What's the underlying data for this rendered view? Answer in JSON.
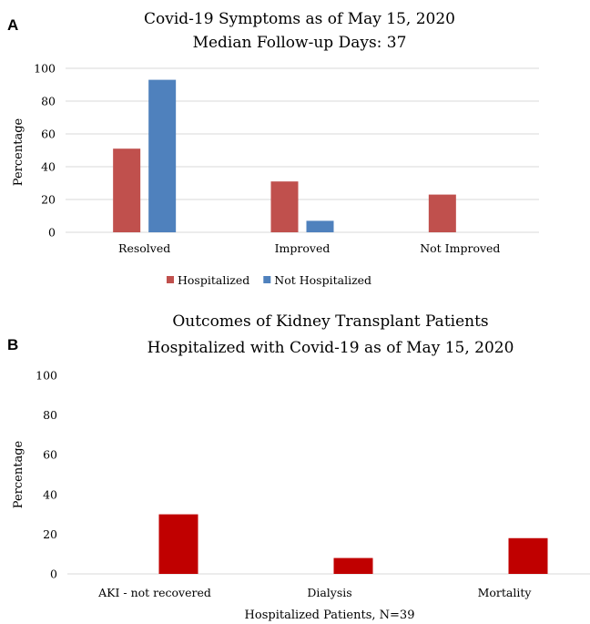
{
  "chart_data": [
    {
      "type": "bar",
      "panel": "A",
      "title": [
        "Covid-19 Symptoms as of May 15, 2020",
        "Median Follow-up Days: 37"
      ],
      "xlabel": "",
      "ylabel": "Percentage",
      "ylim": [
        0,
        100
      ],
      "yticks": [
        0,
        20,
        40,
        60,
        80,
        100
      ],
      "grid": true,
      "legend_placement": "bottom",
      "categories": [
        "Resolved",
        "Improved",
        "Not Improved"
      ],
      "series": [
        {
          "name": "Hospitalized",
          "color": "#c0504d",
          "values": [
            51,
            31,
            23
          ]
        },
        {
          "name": "Not Hospitalized",
          "color": "#4f81bd",
          "values": [
            93,
            7,
            0
          ]
        }
      ]
    },
    {
      "type": "bar",
      "panel": "B",
      "title": [
        "Outcomes of Kidney Transplant Patients",
        "Hospitalized with Covid-19 as of May 15, 2020"
      ],
      "xlabel": "Hospitalized Patients, N=39",
      "ylabel": "Percentage",
      "ylim": [
        0,
        100
      ],
      "yticks": [
        0,
        20,
        40,
        60,
        80,
        100
      ],
      "grid": false,
      "categories": [
        "AKI - not recovered",
        "Dialysis",
        "Mortality"
      ],
      "series": [
        {
          "color": "#c00000",
          "values": [
            30,
            8,
            18
          ]
        }
      ]
    }
  ]
}
